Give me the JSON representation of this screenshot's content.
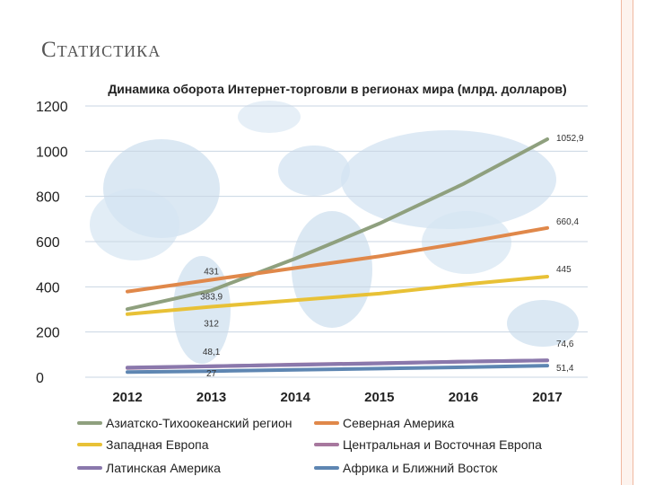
{
  "slide": {
    "title": "Статистика"
  },
  "chart_data": {
    "type": "line",
    "title": "Динамика оборота Интернет-торговли в регионах мира (млрд. долларов)",
    "x": [
      "2012",
      "2013",
      "2014",
      "2015",
      "2016",
      "2017"
    ],
    "ylim": [
      0,
      1200
    ],
    "yticks": [
      0,
      200,
      400,
      600,
      800,
      1000,
      1200
    ],
    "grid": true,
    "legend_position": "bottom",
    "series": [
      {
        "name": "Азиатско-Тихоокеанский регион",
        "color": "#8fa07e",
        "values": [
          301,
          383.9,
          525,
          680,
          855,
          1052.9
        ]
      },
      {
        "name": "Северная Америка",
        "color": "#e0884a",
        "values": [
          379,
          431,
          483,
          535,
          595,
          660.4
        ]
      },
      {
        "name": "Западная Европа",
        "color": "#e8c136",
        "values": [
          279,
          312,
          341,
          370,
          410,
          445
        ]
      },
      {
        "name": "Центральная и Восточная Европа",
        "color": "#a7789e",
        "values": [
          41,
          48.1,
          56,
          62,
          69,
          74.6
        ]
      },
      {
        "name": "Латинская Америка",
        "color": "#8a78ac",
        "values": [
          43,
          49,
          55,
          61,
          69,
          74.6
        ]
      },
      {
        "name": "Африка и Ближний Восток",
        "color": "#5e86b2",
        "values": [
          23,
          27,
          33,
          38,
          44,
          51.4
        ]
      }
    ],
    "data_labels": [
      {
        "series": 1,
        "index": 1,
        "text": "431"
      },
      {
        "series": 0,
        "index": 1,
        "text": "383,9"
      },
      {
        "series": 2,
        "index": 1,
        "text": "312"
      },
      {
        "series": 3,
        "index": 1,
        "text": "48,1"
      },
      {
        "series": 5,
        "index": 1,
        "text": "27"
      },
      {
        "series": 0,
        "index": 5,
        "text": "1052,9"
      },
      {
        "series": 1,
        "index": 5,
        "text": "660,4"
      },
      {
        "series": 2,
        "index": 5,
        "text": "445"
      },
      {
        "series": 4,
        "index": 5,
        "text": "74,6"
      },
      {
        "series": 5,
        "index": 5,
        "text": "51,4"
      }
    ]
  }
}
